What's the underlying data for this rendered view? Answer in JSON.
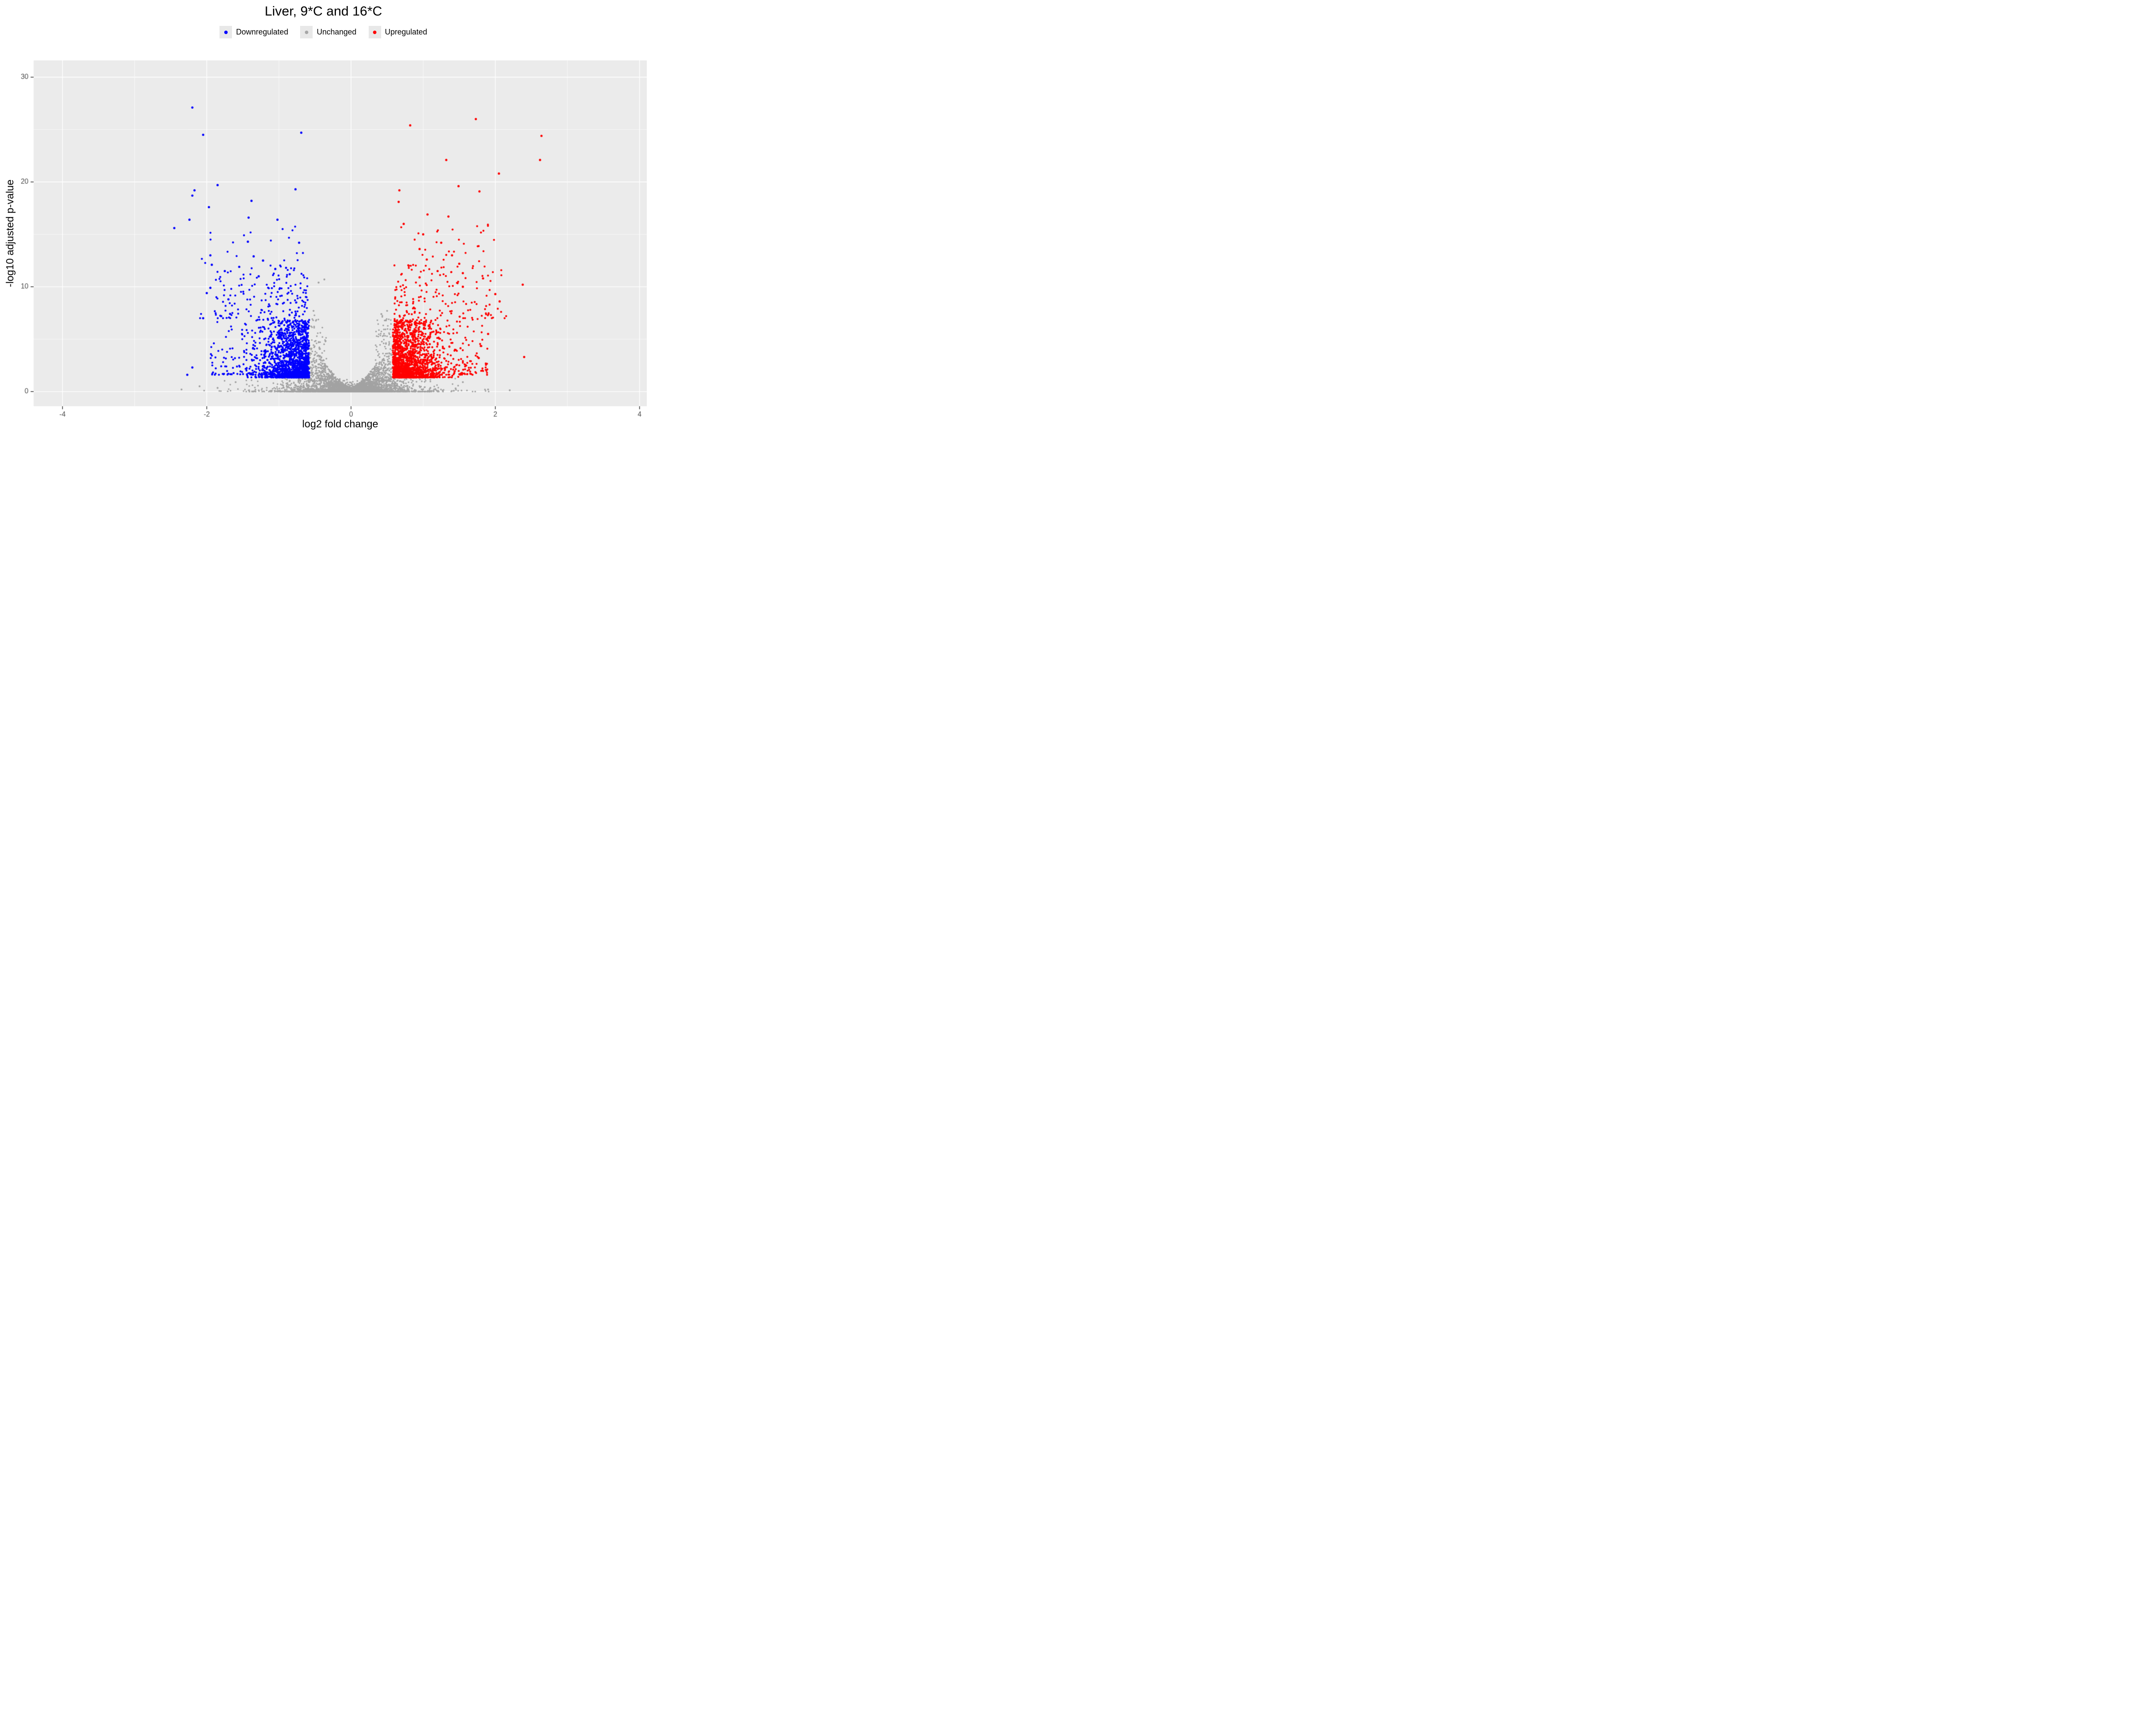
{
  "title": "Liver, 9*C and 16*C",
  "legend": {
    "items": [
      {
        "label": "Downregulated",
        "color": "#0000ff"
      },
      {
        "label": "Unchanged",
        "color": "#a6a6a6"
      },
      {
        "label": "Upregulated",
        "color": "#ff0000"
      }
    ]
  },
  "chart_data": {
    "type": "scatter",
    "variant": "volcano",
    "title": "Liver, 9*C and 16*C",
    "xlabel": "log2 fold change",
    "ylabel": "-log10 adjusted p-value",
    "x_ticks": [
      -4,
      -2,
      0,
      2,
      4
    ],
    "x_minor": [
      -3,
      -1,
      1,
      3
    ],
    "y_ticks": [
      0,
      10,
      20,
      30
    ],
    "y_minor": [
      5,
      15,
      25
    ],
    "xlim": [
      -4.4,
      4.1
    ],
    "ylim": [
      -1.4,
      31.6
    ],
    "panel_bg": "#ebebeb",
    "grid_color": "#ffffff",
    "tick_color": "#333333",
    "tick_label_color": "#4d4d4d",
    "sig_threshold_x": 0.58,
    "sig_threshold_y": 1.3,
    "series": [
      {
        "name": "Unchanged",
        "color": "#a3a3a3",
        "r": 1.9,
        "points": [
          [
            -0.37,
            10.7
          ],
          [
            -0.45,
            10.4
          ],
          [
            -0.52,
            7.7
          ],
          [
            0.42,
            7.4
          ],
          [
            0.5,
            7.7
          ],
          [
            0.48,
            6.8
          ],
          [
            -1.6,
            0.9
          ],
          [
            -1.85,
            0.35
          ],
          [
            -2.1,
            0.5
          ],
          [
            -2.35,
            0.2
          ],
          [
            1.1,
            0.35
          ],
          [
            1.45,
            0.3
          ],
          [
            1.55,
            0.9
          ],
          [
            1.9,
            0.2
          ],
          [
            2.2,
            0.12
          ]
        ]
      },
      {
        "name": "Downregulated",
        "color": "#0000ff",
        "r": 2.3,
        "points": [
          [
            -2.2,
            27.1
          ],
          [
            -2.05,
            24.5
          ],
          [
            -0.69,
            24.7
          ],
          [
            -1.85,
            19.7
          ],
          [
            -2.17,
            19.2
          ],
          [
            -2.2,
            18.7
          ],
          [
            -1.38,
            18.2
          ],
          [
            -0.77,
            19.3
          ],
          [
            -1.97,
            17.6
          ],
          [
            -2.24,
            16.4
          ],
          [
            -1.42,
            16.6
          ],
          [
            -1.02,
            16.4
          ],
          [
            -2.45,
            15.6
          ],
          [
            -1.43,
            14.3
          ],
          [
            -0.72,
            14.2
          ],
          [
            -1.95,
            13.0
          ],
          [
            -1.35,
            12.9
          ],
          [
            -1.22,
            12.5
          ],
          [
            -1.93,
            12.1
          ],
          [
            -1.55,
            11.9
          ],
          [
            -1.75,
            11.5
          ],
          [
            -1.05,
            11.7
          ],
          [
            -1.28,
            11.0
          ],
          [
            -0.85,
            11.2
          ],
          [
            -1.95,
            9.9
          ],
          [
            -2.0,
            9.4
          ],
          [
            -1.7,
            8.8
          ],
          [
            -1.8,
            7.2
          ],
          [
            -2.05,
            7.0
          ],
          [
            -2.2,
            2.3
          ],
          [
            -2.27,
            1.6
          ]
        ]
      },
      {
        "name": "Upregulated",
        "color": "#ff0000",
        "r": 2.3,
        "points": [
          [
            1.73,
            26.0
          ],
          [
            0.82,
            25.4
          ],
          [
            2.64,
            24.4
          ],
          [
            1.32,
            22.1
          ],
          [
            2.62,
            22.1
          ],
          [
            2.05,
            20.8
          ],
          [
            1.49,
            19.6
          ],
          [
            1.78,
            19.1
          ],
          [
            0.67,
            19.2
          ],
          [
            0.66,
            18.1
          ],
          [
            1.06,
            16.9
          ],
          [
            1.35,
            16.7
          ],
          [
            0.73,
            16.0
          ],
          [
            1.0,
            15.0
          ],
          [
            1.25,
            14.2
          ],
          [
            0.95,
            13.6
          ],
          [
            1.4,
            13.0
          ],
          [
            1.05,
            12.6
          ],
          [
            1.5,
            12.2
          ],
          [
            0.8,
            12.0
          ],
          [
            1.2,
            11.5
          ],
          [
            1.55,
            11.3
          ],
          [
            0.95,
            10.9
          ],
          [
            1.83,
            10.8
          ],
          [
            2.38,
            10.2
          ],
          [
            1.55,
            10.0
          ],
          [
            2.0,
            9.3
          ],
          [
            2.06,
            8.6
          ],
          [
            1.9,
            5.5
          ],
          [
            1.77,
            3.2
          ],
          [
            2.4,
            3.3
          ]
        ]
      }
    ],
    "clouds": [
      {
        "series": "Unchanged",
        "kind": "core",
        "seed": 11,
        "count": 3800,
        "sd": 0.3,
        "xmax": 1.1,
        "ybase": 0.4,
        "yslope": 11,
        "xcap": 0.52,
        "ypow": 3.5
      },
      {
        "series": "Unchanged",
        "kind": "band",
        "seed": 12,
        "count": 900,
        "sd": 0.65,
        "xmax": 2.35,
        "yh": 1.25,
        "ypow": 4
      },
      {
        "series": "Unchanged",
        "kind": "arms",
        "seed": 13,
        "count": 240,
        "x0": 0.34,
        "xw": 0.22,
        "y0": 1.0,
        "yh": 6.3
      },
      {
        "series": "Downregulated",
        "kind": "cluster",
        "seed": 21,
        "sign": -1,
        "count": 1500,
        "x0": 0.58,
        "sd": 0.3,
        "x1": 1.45,
        "y0": 1.35,
        "yh": 5.5,
        "ypow": 2.5
      },
      {
        "series": "Downregulated",
        "kind": "spread",
        "seed": 22,
        "sign": -1,
        "count": 420,
        "x0": 0.6,
        "xw": 1.35,
        "xpow": 1.6,
        "y0": 1.6,
        "yh": 10.5,
        "ypow": 2.2
      },
      {
        "series": "Downregulated",
        "kind": "spread",
        "seed": 23,
        "sign": -1,
        "count": 60,
        "x0": 0.65,
        "xw": 1.45,
        "xpow": 1,
        "y0": 7,
        "yh": 9,
        "ypow": 2
      },
      {
        "series": "Upregulated",
        "kind": "cluster",
        "seed": 31,
        "sign": 1,
        "count": 1500,
        "x0": 0.58,
        "sd": 0.3,
        "x1": 1.55,
        "y0": 1.35,
        "yh": 5.5,
        "ypow": 2.5
      },
      {
        "series": "Upregulated",
        "kind": "spread",
        "seed": 32,
        "sign": 1,
        "count": 430,
        "x0": 0.6,
        "xw": 1.3,
        "xpow": 1.6,
        "y0": 1.6,
        "yh": 10.5,
        "ypow": 2.2
      },
      {
        "series": "Upregulated",
        "kind": "spread",
        "seed": 33,
        "sign": 1,
        "count": 80,
        "x0": 0.65,
        "xw": 1.5,
        "xpow": 1,
        "y0": 7,
        "yh": 9,
        "ypow": 2
      }
    ]
  }
}
